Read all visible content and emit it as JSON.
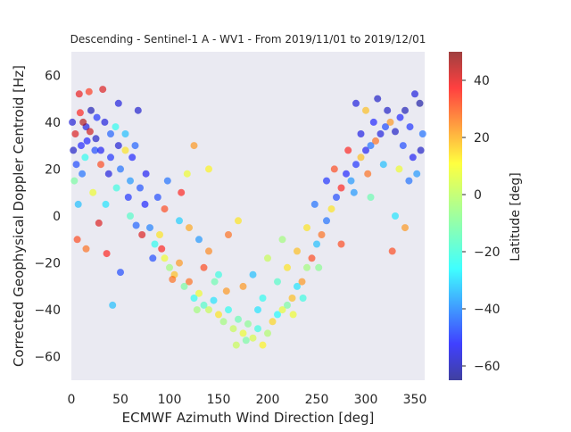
{
  "chart_data": {
    "type": "scatter",
    "title": "Descending - Sentinel-1 A - WV1 - From 2019/11/01 to 2019/12/01",
    "xlabel": "ECMWF Azimuth Wind Direction [deg]",
    "ylabel": "Corrected Geophysical Doppler Centroid [Hz]",
    "xlim": [
      0,
      360
    ],
    "ylim": [
      -70,
      70
    ],
    "xticks": [
      0,
      50,
      100,
      150,
      200,
      250,
      300,
      350
    ],
    "yticks": [
      -60,
      -40,
      -20,
      0,
      20,
      40,
      60
    ],
    "grid": false,
    "background": "#eaeaf2",
    "colorbar": {
      "label": "Latitude [deg]",
      "colormap": "jet",
      "range": [
        -65,
        50
      ],
      "ticks": [
        -60,
        -40,
        -20,
        0,
        20,
        40
      ]
    },
    "series": [
      {
        "marker_alpha": 0.6,
        "points": [
          {
            "x": 10,
            "y": 30,
            "lat": -50
          },
          {
            "x": 15,
            "y": 38,
            "lat": -55
          },
          {
            "x": 5,
            "y": 22,
            "lat": -45
          },
          {
            "x": 25,
            "y": 33,
            "lat": -58
          },
          {
            "x": 30,
            "y": 28,
            "lat": -52
          },
          {
            "x": 40,
            "y": 25,
            "lat": -48
          },
          {
            "x": 50,
            "y": 20,
            "lat": -40
          },
          {
            "x": 60,
            "y": 15,
            "lat": -35
          },
          {
            "x": 70,
            "y": 12,
            "lat": -44
          },
          {
            "x": 20,
            "y": 45,
            "lat": -60
          },
          {
            "x": 8,
            "y": 52,
            "lat": 38
          },
          {
            "x": 18,
            "y": 53,
            "lat": 32
          },
          {
            "x": 32,
            "y": 54,
            "lat": 40
          },
          {
            "x": 12,
            "y": 40,
            "lat": 45
          },
          {
            "x": 45,
            "y": 38,
            "lat": -20
          },
          {
            "x": 55,
            "y": 35,
            "lat": -30
          },
          {
            "x": 65,
            "y": 30,
            "lat": -42
          },
          {
            "x": 3,
            "y": 15,
            "lat": -10
          },
          {
            "x": 22,
            "y": 10,
            "lat": 5
          },
          {
            "x": 35,
            "y": 5,
            "lat": -25
          },
          {
            "x": 48,
            "y": 48,
            "lat": -55
          },
          {
            "x": 68,
            "y": 45,
            "lat": -57
          },
          {
            "x": 6,
            "y": -10,
            "lat": 30
          },
          {
            "x": 15,
            "y": -14,
            "lat": 25
          },
          {
            "x": 42,
            "y": -38,
            "lat": -30
          },
          {
            "x": 50,
            "y": -24,
            "lat": -45
          },
          {
            "x": 36,
            "y": -16,
            "lat": 35
          },
          {
            "x": 28,
            "y": -3,
            "lat": 40
          },
          {
            "x": 60,
            "y": 0,
            "lat": -15
          },
          {
            "x": 75,
            "y": 5,
            "lat": -50
          },
          {
            "x": 80,
            "y": -5,
            "lat": -38
          },
          {
            "x": 85,
            "y": -12,
            "lat": -20
          },
          {
            "x": 90,
            "y": -8,
            "lat": 10
          },
          {
            "x": 95,
            "y": -18,
            "lat": 5
          },
          {
            "x": 100,
            "y": -22,
            "lat": -5
          },
          {
            "x": 105,
            "y": -25,
            "lat": 15
          },
          {
            "x": 110,
            "y": -20,
            "lat": 20
          },
          {
            "x": 115,
            "y": -30,
            "lat": -10
          },
          {
            "x": 120,
            "y": -28,
            "lat": 25
          },
          {
            "x": 125,
            "y": -35,
            "lat": -20
          },
          {
            "x": 130,
            "y": -33,
            "lat": 5
          },
          {
            "x": 135,
            "y": -38,
            "lat": -15
          },
          {
            "x": 140,
            "y": -40,
            "lat": 0
          },
          {
            "x": 145,
            "y": -36,
            "lat": -25
          },
          {
            "x": 150,
            "y": -42,
            "lat": 10
          },
          {
            "x": 155,
            "y": -45,
            "lat": -5
          },
          {
            "x": 160,
            "y": -40,
            "lat": -20
          },
          {
            "x": 165,
            "y": -48,
            "lat": 0
          },
          {
            "x": 170,
            "y": -44,
            "lat": -12
          },
          {
            "x": 175,
            "y": -50,
            "lat": 5
          },
          {
            "x": 180,
            "y": -46,
            "lat": -8
          },
          {
            "x": 185,
            "y": -52,
            "lat": 2
          },
          {
            "x": 190,
            "y": -48,
            "lat": -18
          },
          {
            "x": 195,
            "y": -55,
            "lat": 8
          },
          {
            "x": 200,
            "y": -50,
            "lat": -3
          },
          {
            "x": 205,
            "y": -45,
            "lat": 12
          },
          {
            "x": 210,
            "y": -42,
            "lat": -22
          },
          {
            "x": 215,
            "y": -40,
            "lat": 4
          },
          {
            "x": 220,
            "y": -38,
            "lat": -10
          },
          {
            "x": 225,
            "y": -35,
            "lat": 15
          },
          {
            "x": 230,
            "y": -30,
            "lat": -25
          },
          {
            "x": 235,
            "y": -28,
            "lat": 20
          },
          {
            "x": 240,
            "y": -22,
            "lat": -5
          },
          {
            "x": 245,
            "y": -18,
            "lat": 30
          },
          {
            "x": 250,
            "y": -12,
            "lat": -30
          },
          {
            "x": 255,
            "y": -8,
            "lat": 25
          },
          {
            "x": 260,
            "y": -2,
            "lat": -40
          },
          {
            "x": 265,
            "y": 3,
            "lat": 10
          },
          {
            "x": 270,
            "y": 8,
            "lat": -45
          },
          {
            "x": 275,
            "y": 12,
            "lat": 35
          },
          {
            "x": 280,
            "y": 18,
            "lat": -50
          },
          {
            "x": 285,
            "y": 15,
            "lat": -35
          },
          {
            "x": 290,
            "y": 22,
            "lat": -48
          },
          {
            "x": 295,
            "y": 25,
            "lat": 15
          },
          {
            "x": 300,
            "y": 28,
            "lat": -52
          },
          {
            "x": 305,
            "y": 30,
            "lat": -40
          },
          {
            "x": 310,
            "y": 32,
            "lat": 25
          },
          {
            "x": 315,
            "y": 35,
            "lat": -55
          },
          {
            "x": 320,
            "y": 38,
            "lat": -45
          },
          {
            "x": 325,
            "y": 40,
            "lat": 20
          },
          {
            "x": 330,
            "y": 36,
            "lat": -58
          },
          {
            "x": 335,
            "y": 42,
            "lat": -50
          },
          {
            "x": 340,
            "y": 45,
            "lat": -60
          },
          {
            "x": 345,
            "y": 38,
            "lat": -48
          },
          {
            "x": 350,
            "y": 52,
            "lat": -55
          },
          {
            "x": 355,
            "y": 48,
            "lat": -62
          },
          {
            "x": 358,
            "y": 35,
            "lat": -40
          },
          {
            "x": 290,
            "y": 48,
            "lat": -55
          },
          {
            "x": 300,
            "y": 45,
            "lat": 15
          },
          {
            "x": 312,
            "y": 50,
            "lat": -58
          },
          {
            "x": 327,
            "y": -15,
            "lat": 30
          },
          {
            "x": 330,
            "y": 0,
            "lat": -25
          },
          {
            "x": 340,
            "y": -5,
            "lat": 20
          },
          {
            "x": 305,
            "y": 8,
            "lat": -12
          },
          {
            "x": 275,
            "y": -12,
            "lat": 30
          },
          {
            "x": 118,
            "y": 18,
            "lat": 5
          },
          {
            "x": 125,
            "y": 30,
            "lat": 20
          },
          {
            "x": 140,
            "y": 20,
            "lat": 8
          },
          {
            "x": 112,
            "y": 10,
            "lat": 35
          },
          {
            "x": 98,
            "y": 15,
            "lat": -40
          },
          {
            "x": 170,
            "y": -2,
            "lat": 10
          },
          {
            "x": 160,
            "y": -8,
            "lat": 25
          },
          {
            "x": 200,
            "y": -18,
            "lat": 0
          },
          {
            "x": 215,
            "y": -10,
            "lat": -5
          },
          {
            "x": 230,
            "y": -15,
            "lat": 15
          },
          {
            "x": 185,
            "y": -25,
            "lat": -30
          },
          {
            "x": 195,
            "y": -35,
            "lat": -20
          },
          {
            "x": 175,
            "y": -30,
            "lat": 20
          },
          {
            "x": 210,
            "y": -28,
            "lat": -15
          },
          {
            "x": 220,
            "y": -22,
            "lat": 10
          },
          {
            "x": 150,
            "y": -25,
            "lat": -18
          },
          {
            "x": 140,
            "y": -15,
            "lat": 22
          },
          {
            "x": 130,
            "y": -10,
            "lat": -35
          },
          {
            "x": 120,
            "y": -5,
            "lat": 18
          },
          {
            "x": 110,
            "y": -2,
            "lat": -28
          },
          {
            "x": 95,
            "y": 3,
            "lat": 30
          },
          {
            "x": 88,
            "y": 8,
            "lat": -45
          },
          {
            "x": 76,
            "y": 18,
            "lat": -52
          },
          {
            "x": 62,
            "y": 25,
            "lat": -50
          },
          {
            "x": 55,
            "y": 28,
            "lat": 10
          },
          {
            "x": 48,
            "y": 30,
            "lat": -56
          },
          {
            "x": 40,
            "y": 35,
            "lat": -42
          },
          {
            "x": 34,
            "y": 40,
            "lat": -55
          },
          {
            "x": 26,
            "y": 42,
            "lat": -48
          },
          {
            "x": 14,
            "y": 25,
            "lat": -20
          },
          {
            "x": 4,
            "y": 35,
            "lat": 40
          },
          {
            "x": 9,
            "y": 44,
            "lat": 35
          },
          {
            "x": 2,
            "y": 28,
            "lat": -58
          },
          {
            "x": 1,
            "y": 40,
            "lat": -56
          },
          {
            "x": 7,
            "y": 5,
            "lat": -30
          },
          {
            "x": 260,
            "y": 15,
            "lat": -48
          },
          {
            "x": 268,
            "y": 20,
            "lat": 30
          },
          {
            "x": 282,
            "y": 28,
            "lat": 35
          },
          {
            "x": 295,
            "y": 35,
            "lat": -54
          },
          {
            "x": 308,
            "y": 40,
            "lat": -50
          },
          {
            "x": 322,
            "y": 45,
            "lat": -58
          },
          {
            "x": 338,
            "y": 30,
            "lat": -45
          },
          {
            "x": 348,
            "y": 25,
            "lat": -52
          },
          {
            "x": 352,
            "y": 18,
            "lat": -35
          },
          {
            "x": 356,
            "y": 28,
            "lat": -58
          },
          {
            "x": 344,
            "y": 15,
            "lat": -40
          },
          {
            "x": 334,
            "y": 20,
            "lat": 5
          },
          {
            "x": 318,
            "y": 22,
            "lat": -30
          },
          {
            "x": 302,
            "y": 18,
            "lat": 25
          },
          {
            "x": 288,
            "y": 10,
            "lat": -35
          },
          {
            "x": 248,
            "y": 5,
            "lat": -40
          },
          {
            "x": 240,
            "y": -5,
            "lat": 10
          },
          {
            "x": 252,
            "y": -22,
            "lat": -8
          },
          {
            "x": 236,
            "y": -35,
            "lat": -18
          },
          {
            "x": 226,
            "y": -42,
            "lat": 5
          },
          {
            "x": 168,
            "y": -55,
            "lat": 0
          },
          {
            "x": 178,
            "y": -53,
            "lat": -10
          },
          {
            "x": 190,
            "y": -40,
            "lat": -25
          },
          {
            "x": 158,
            "y": -32,
            "lat": 20
          },
          {
            "x": 146,
            "y": -28,
            "lat": -12
          },
          {
            "x": 135,
            "y": -22,
            "lat": 30
          },
          {
            "x": 128,
            "y": -40,
            "lat": -5
          },
          {
            "x": 103,
            "y": -27,
            "lat": 25
          },
          {
            "x": 92,
            "y": -14,
            "lat": 35
          },
          {
            "x": 83,
            "y": -18,
            "lat": -45
          },
          {
            "x": 72,
            "y": -8,
            "lat": 40
          },
          {
            "x": 66,
            "y": -4,
            "lat": -42
          },
          {
            "x": 58,
            "y": 8,
            "lat": -48
          },
          {
            "x": 46,
            "y": 12,
            "lat": -18
          },
          {
            "x": 38,
            "y": 18,
            "lat": -55
          },
          {
            "x": 30,
            "y": 22,
            "lat": 30
          },
          {
            "x": 24,
            "y": 28,
            "lat": -45
          },
          {
            "x": 16,
            "y": 32,
            "lat": -50
          },
          {
            "x": 11,
            "y": 18,
            "lat": -40
          },
          {
            "x": 19,
            "y": 36,
            "lat": 42
          }
        ]
      }
    ]
  }
}
